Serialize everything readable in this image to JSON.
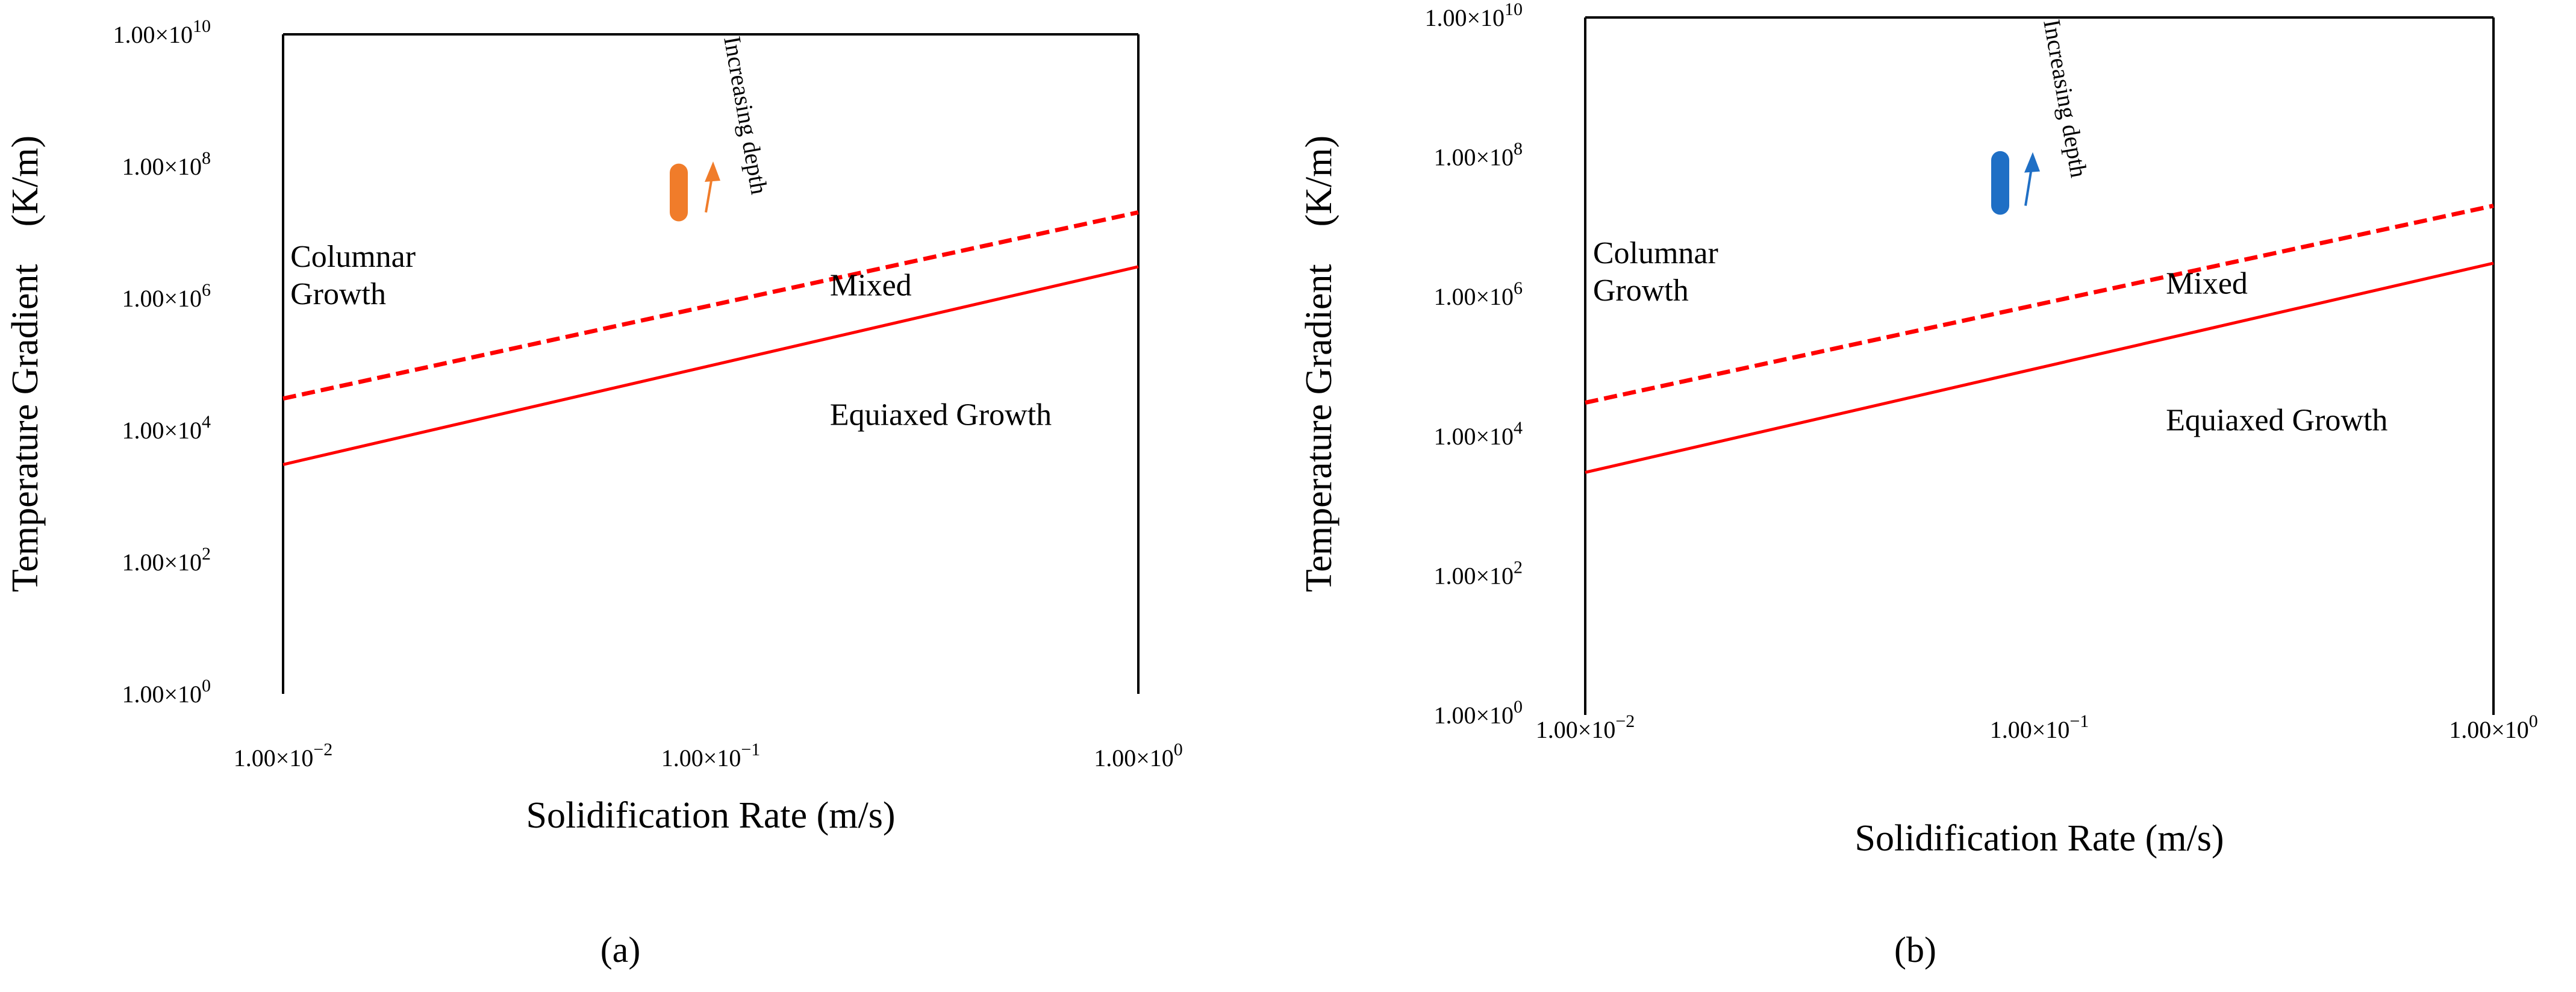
{
  "chart_data": [
    {
      "type": "line",
      "panel_label": "(a)",
      "xscale": "log",
      "yscale": "log",
      "xlim": [
        0.01,
        1
      ],
      "ylim": [
        1,
        10000000000
      ],
      "xlabel": "Solidification Rate (m/s)",
      "ylabel": "Temperature Gradient    (K/m)",
      "x_ticks": [
        {
          "value": 0.01,
          "mantissa": "1.00×",
          "base": "10",
          "exp": "−2"
        },
        {
          "value": 0.1,
          "mantissa": "1.00×",
          "base": "10",
          "exp": "−1"
        },
        {
          "value": 1,
          "mantissa": "1.00×",
          "base": "10",
          "exp": "0"
        }
      ],
      "y_ticks": [
        {
          "value": 1,
          "mantissa": "1.00×",
          "base": "10",
          "exp": "0"
        },
        {
          "value": 100,
          "mantissa": "1.00×",
          "base": "10",
          "exp": "2"
        },
        {
          "value": 10000,
          "mantissa": "1.00×",
          "base": "10",
          "exp": "4"
        },
        {
          "value": 1000000,
          "mantissa": "1.00×",
          "base": "10",
          "exp": "6"
        },
        {
          "value": 100000000,
          "mantissa": "1.00×",
          "base": "10",
          "exp": "8"
        },
        {
          "value": 10000000000,
          "mantissa": "1.00×",
          "base": "10",
          "exp": "10"
        }
      ],
      "series": [
        {
          "name": "columnar-boundary",
          "style": "dashed",
          "color": "#ff0000",
          "x": [
            0.01,
            1
          ],
          "y": [
            30000,
            20000000
          ]
        },
        {
          "name": "equiaxed-boundary",
          "style": "solid",
          "color": "#ff0000",
          "x": [
            0.01,
            1
          ],
          "y": [
            3000,
            3000000
          ]
        }
      ],
      "data_points": {
        "color": "#f07c2a",
        "x": [
          0.074,
          0.074
        ],
        "y": [
          80000000,
          20000000
        ]
      },
      "regions": [
        {
          "lines": [
            "Columnar",
            "Growth"
          ],
          "x": 0.0104,
          "y": 3000000
        },
        {
          "lines": [
            "Mixed"
          ],
          "x": 0.19,
          "y": 1100000
        },
        {
          "lines": [
            "Equiaxed Growth"
          ],
          "x": 0.19,
          "y": 12000
        }
      ],
      "annotation": {
        "text": "Increasing depth",
        "arrow_color": "#f07c2a",
        "x": 0.08,
        "y_from": 20000000,
        "y_to": 100000000
      }
    },
    {
      "type": "line",
      "panel_label": "(b)",
      "xscale": "log",
      "yscale": "log",
      "xlim": [
        0.01,
        1
      ],
      "ylim": [
        1,
        10000000000
      ],
      "xlabel": "Solidification Rate (m/s)",
      "ylabel": "Temperature Gradient    (K/m)",
      "x_ticks": [
        {
          "value": 0.01,
          "mantissa": "1.00×",
          "base": "10",
          "exp": "−2"
        },
        {
          "value": 0.1,
          "mantissa": "1.00×",
          "base": "10",
          "exp": "−1"
        },
        {
          "value": 1,
          "mantissa": "1.00×",
          "base": "10",
          "exp": "0"
        }
      ],
      "y_ticks": [
        {
          "value": 1,
          "mantissa": "1.00×",
          "base": "10",
          "exp": "0"
        },
        {
          "value": 100,
          "mantissa": "1.00×",
          "base": "10",
          "exp": "2"
        },
        {
          "value": 10000,
          "mantissa": "1.00×",
          "base": "10",
          "exp": "4"
        },
        {
          "value": 1000000,
          "mantissa": "1.00×",
          "base": "10",
          "exp": "6"
        },
        {
          "value": 100000000,
          "mantissa": "1.00×",
          "base": "10",
          "exp": "8"
        },
        {
          "value": 10000000000,
          "mantissa": "1.00×",
          "base": "10",
          "exp": "10"
        }
      ],
      "series": [
        {
          "name": "columnar-boundary",
          "style": "dashed",
          "color": "#ff0000",
          "x": [
            0.01,
            1
          ],
          "y": [
            30000,
            20000000
          ]
        },
        {
          "name": "equiaxed-boundary",
          "style": "solid",
          "color": "#ff0000",
          "x": [
            0.01,
            1
          ],
          "y": [
            3000,
            3000000
          ]
        }
      ],
      "data_points": {
        "color": "#1f6fc5",
        "x": [
          0.071,
          0.071
        ],
        "y": [
          90000000,
          20000000
        ]
      },
      "regions": [
        {
          "lines": [
            "Columnar",
            "Growth"
          ],
          "x": 0.0104,
          "y": 3000000
        },
        {
          "lines": [
            "Mixed"
          ],
          "x": 0.19,
          "y": 1100000
        },
        {
          "lines": [
            "Equiaxed Growth"
          ],
          "x": 0.19,
          "y": 12000
        }
      ],
      "annotation": {
        "text": "Increasing depth",
        "arrow_color": "#1f6fc5",
        "x": 0.078,
        "y_from": 20000000,
        "y_to": 100000000
      }
    }
  ]
}
